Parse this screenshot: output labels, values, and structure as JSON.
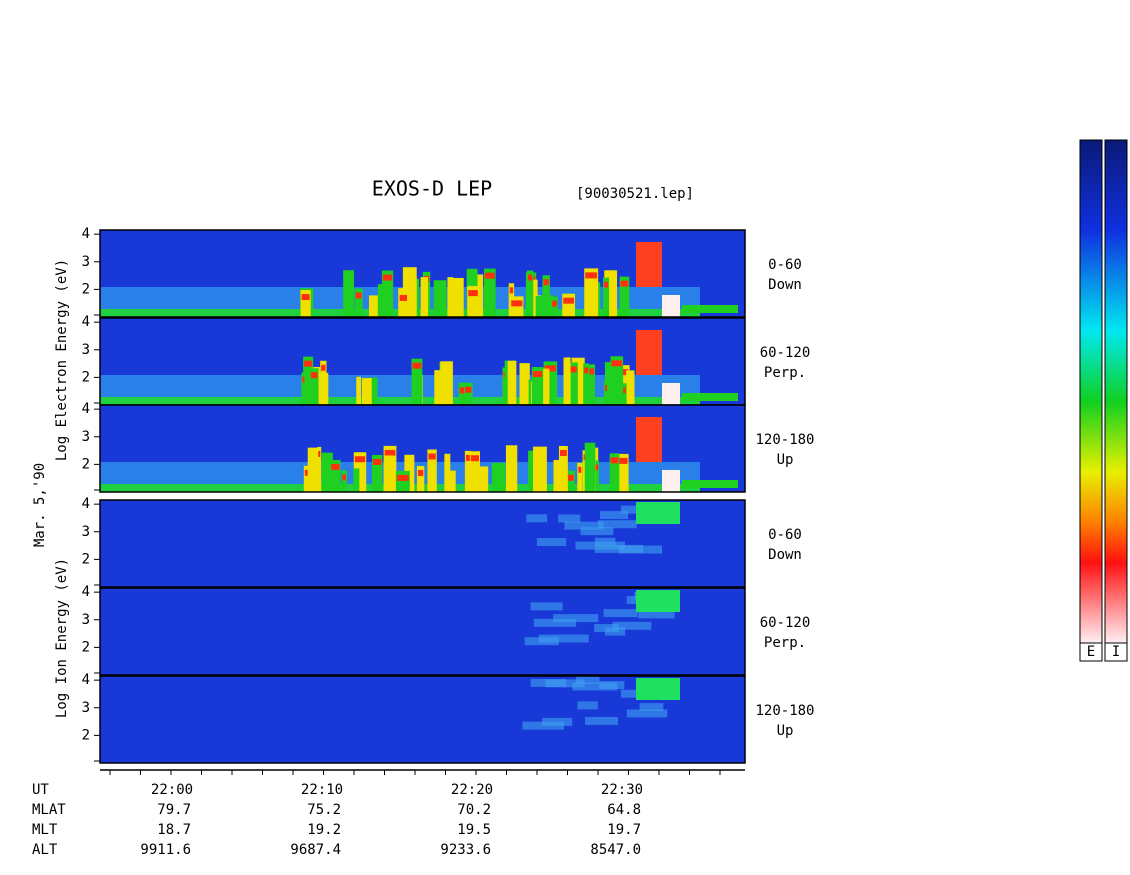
{
  "chart_data": {
    "type": "spectrogram",
    "title": "EXOS-D LEP",
    "subtitle": "[90030521.lep]",
    "date_label": "Mar. 5,'90",
    "electron_axis_label": "Log Electron Energy (eV)",
    "ion_axis_label": "Log Ion Energy (eV)",
    "ylim": [
      1,
      4.15
    ],
    "yticks": [
      2,
      3,
      4
    ],
    "panels": [
      {
        "species": "electron",
        "label": [
          "0-60",
          "Down"
        ]
      },
      {
        "species": "electron",
        "label": [
          "60-120",
          "Perp."
        ]
      },
      {
        "species": "electron",
        "label": [
          "120-180",
          "Up"
        ]
      },
      {
        "species": "ion",
        "label": [
          "0-60",
          "Down"
        ]
      },
      {
        "species": "ion",
        "label": [
          "60-120",
          "Perp."
        ]
      },
      {
        "species": "ion",
        "label": [
          "120-180",
          "Up"
        ]
      }
    ],
    "orbit_table": [
      [
        "UT",
        "22:00",
        "22:10",
        "22:20",
        "22:30"
      ],
      [
        "MLAT",
        "79.7",
        "75.2",
        "70.2",
        "64.8"
      ],
      [
        "MLT",
        "18.7",
        "19.2",
        "19.5",
        "19.7"
      ],
      [
        "ALT",
        "9911.6",
        "9687.4",
        "9233.6",
        "8547.0"
      ]
    ],
    "colorbar_labels": [
      "E",
      "I"
    ]
  }
}
